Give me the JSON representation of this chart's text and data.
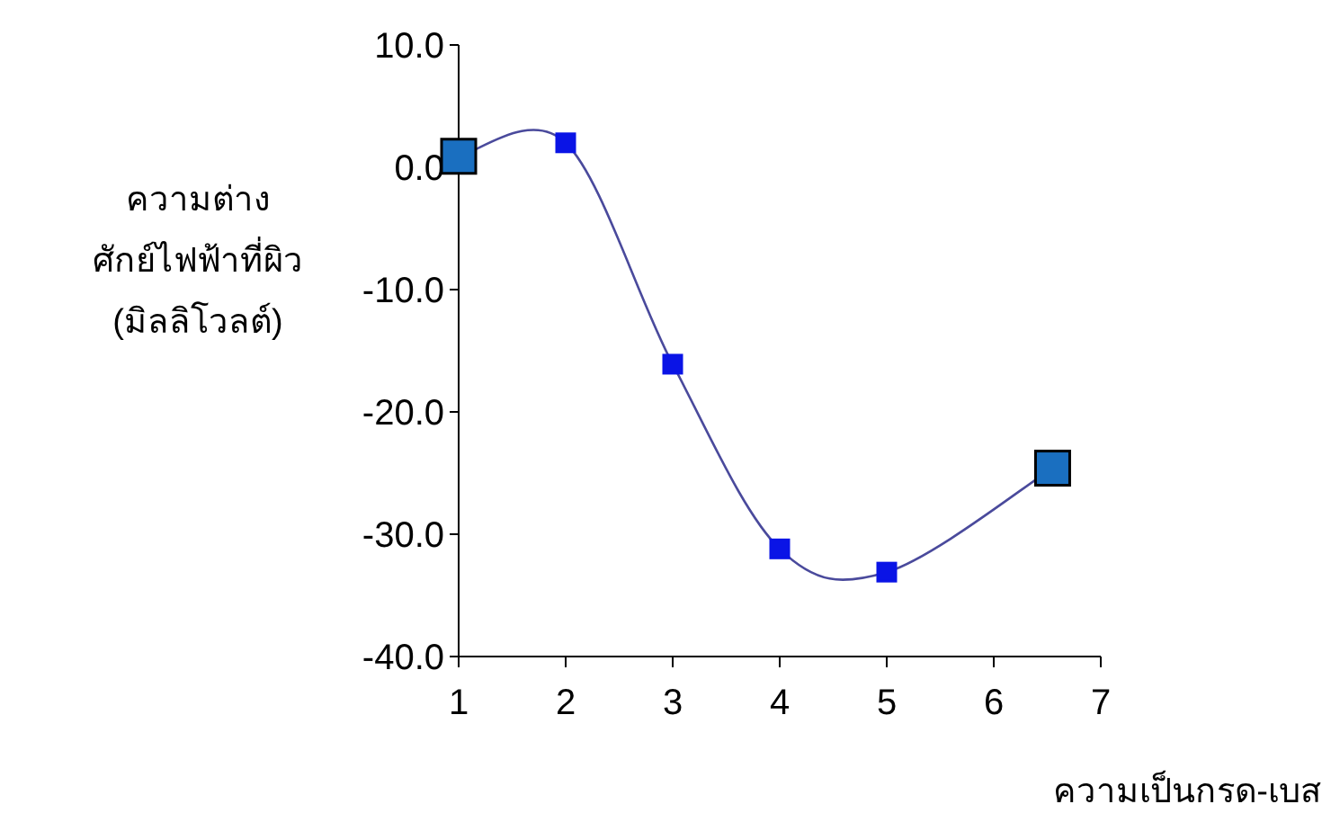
{
  "chart_data": {
    "type": "line",
    "ylabel": "ความต่าง\nศักย์ไฟฟ้าที่ผิว\n(มิลลิโวลต์)",
    "xlabel": "ความเป็นกรด-เบส",
    "xlim": [
      1,
      7
    ],
    "xticks": [
      1,
      2,
      3,
      4,
      5,
      6,
      7
    ],
    "ylim": [
      -40,
      10
    ],
    "yticks": [
      {
        "value": -40,
        "label": "-40.0"
      },
      {
        "value": -30,
        "label": "-30.0"
      },
      {
        "value": -20,
        "label": "-20.0"
      },
      {
        "value": -10,
        "label": "-10.0"
      },
      {
        "value": 0,
        "label": "0.0"
      },
      {
        "value": 10,
        "label": "10.0"
      }
    ],
    "grid": false,
    "series": [
      {
        "color": "#4a4a9c",
        "marker": "none",
        "x": [
          1,
          2,
          3,
          4,
          5,
          6.55
        ],
        "values": [
          0.9,
          2.0,
          -16.1,
          -31.2,
          -33.1,
          -24.6
        ]
      },
      {
        "type": "scatter",
        "color": "#0a14e6",
        "marker": "square",
        "x": [
          2,
          3,
          4,
          5
        ],
        "values": [
          2.0,
          -16.1,
          -31.2,
          -33.1
        ]
      },
      {
        "type": "scatter",
        "color": "#1a6fc0",
        "marker": "square",
        "x": [
          1,
          6.55
        ],
        "values": [
          0.9,
          -24.6
        ]
      }
    ]
  }
}
